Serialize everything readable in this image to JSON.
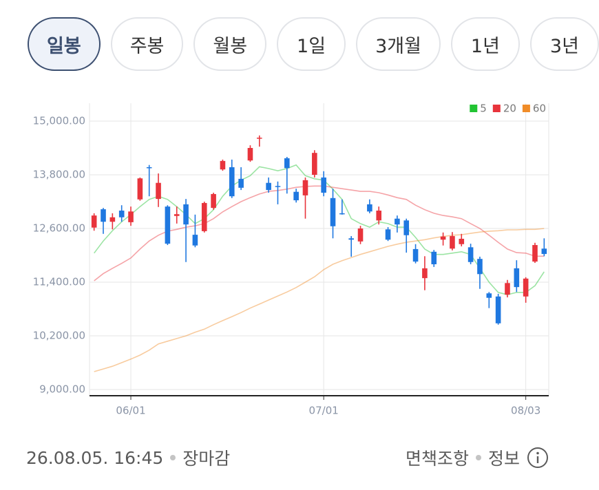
{
  "tabs": [
    "일봉",
    "주봉",
    "월봉",
    "1일",
    "3개월",
    "1년",
    "3년"
  ],
  "selected_tab": 0,
  "chart_data": {
    "type": "candlestick",
    "categories": [
      null,
      null,
      null,
      null,
      "06/01",
      null,
      null,
      null,
      null,
      null,
      null,
      null,
      null,
      null,
      null,
      null,
      null,
      null,
      null,
      null,
      null,
      null,
      null,
      null,
      null,
      "07/01",
      null,
      null,
      null,
      null,
      null,
      null,
      null,
      null,
      null,
      null,
      null,
      null,
      null,
      null,
      null,
      null,
      null,
      null,
      null,
      null,
      null,
      "08/03",
      null,
      null
    ],
    "open": [
      12620,
      13030,
      12750,
      13000,
      12740,
      13250,
      13970,
      13260,
      13090,
      12880,
      13140,
      12460,
      12540,
      13060,
      13920,
      13970,
      13710,
      14120,
      14620,
      13620,
      13550,
      14170,
      13420,
      13340,
      13800,
      13740,
      13280,
      12940,
      12380,
      12310,
      13140,
      12780,
      12580,
      12820,
      12780,
      12140,
      11490,
      12080,
      12350,
      12150,
      12250,
      12180,
      11920,
      11150,
      11080,
      11120,
      11710,
      11080,
      11860,
      12150
    ],
    "high": [
      12940,
      13060,
      12940,
      13120,
      13090,
      13740,
      14020,
      13830,
      13120,
      13090,
      13260,
      12910,
      13200,
      13400,
      14140,
      14140,
      13970,
      14460,
      14680,
      13740,
      13650,
      14200,
      13490,
      13740,
      14350,
      13880,
      13490,
      13250,
      12430,
      12660,
      13250,
      13090,
      12630,
      12890,
      12820,
      12250,
      11980,
      12120,
      12510,
      12520,
      12480,
      12260,
      11970,
      11180,
      11140,
      11450,
      11890,
      11510,
      12280,
      12380
    ],
    "low": [
      12550,
      12480,
      12580,
      12750,
      12660,
      13220,
      13320,
      13080,
      12230,
      12710,
      11850,
      12180,
      12510,
      13020,
      13890,
      13280,
      13460,
      14090,
      14430,
      13400,
      13140,
      13380,
      13180,
      12820,
      13740,
      13320,
      12380,
      12910,
      11970,
      12250,
      12940,
      12690,
      12320,
      12510,
      12060,
      11820,
      11220,
      11740,
      12220,
      12110,
      12200,
      11800,
      11250,
      10820,
      10450,
      11060,
      11180,
      10940,
      11830,
      11980
    ],
    "close": [
      12890,
      12750,
      12850,
      12850,
      12980,
      13720,
      13950,
      13620,
      12260,
      12920,
      12690,
      12220,
      13170,
      13370,
      14110,
      13320,
      13510,
      14400,
      14630,
      13460,
      13540,
      13950,
      13230,
      13680,
      14290,
      13400,
      12650,
      12920,
      12350,
      12600,
      12980,
      13000,
      12350,
      12690,
      12450,
      11860,
      11710,
      11800,
      12420,
      12430,
      12370,
      11850,
      11580,
      11050,
      10480,
      11380,
      11290,
      11480,
      12230,
      12030
    ],
    "up_color": "#e8343c",
    "down_color": "#1f78e0",
    "series": [
      {
        "name": "5",
        "color": "#22c433",
        "values": [
          12050,
          12320,
          12550,
          12750,
          12910,
          13090,
          13250,
          13320,
          13250,
          13090,
          12910,
          12710,
          12820,
          13020,
          13320,
          13550,
          13680,
          13780,
          13980,
          13940,
          13890,
          13940,
          14020,
          13780,
          13710,
          13680,
          13480,
          13250,
          12820,
          12710,
          12630,
          12750,
          12710,
          12630,
          12630,
          12400,
          12140,
          12020,
          12020,
          12050,
          12080,
          12020,
          11710,
          11400,
          11170,
          11120,
          11170,
          11170,
          11320,
          11630
        ]
      },
      {
        "name": "20",
        "color": "#e8343c",
        "values": [
          11430,
          11590,
          11710,
          11820,
          11940,
          12140,
          12320,
          12450,
          12540,
          12580,
          12630,
          12660,
          12710,
          12820,
          12970,
          13090,
          13200,
          13290,
          13370,
          13430,
          13450,
          13480,
          13520,
          13540,
          13550,
          13550,
          13520,
          13490,
          13460,
          13430,
          13430,
          13400,
          13350,
          13290,
          13250,
          13120,
          13020,
          12940,
          12890,
          12860,
          12820,
          12710,
          12600,
          12450,
          12290,
          12140,
          12060,
          12050,
          11980,
          11980
        ]
      },
      {
        "name": "60",
        "color": "#f08c28",
        "values": [
          9400,
          9460,
          9520,
          9600,
          9680,
          9770,
          9880,
          10020,
          10080,
          10140,
          10200,
          10280,
          10350,
          10450,
          10540,
          10630,
          10720,
          10820,
          10910,
          11000,
          11090,
          11180,
          11280,
          11400,
          11520,
          11680,
          11800,
          11880,
          11950,
          12020,
          12080,
          12140,
          12200,
          12250,
          12290,
          12320,
          12350,
          12390,
          12420,
          12450,
          12460,
          12490,
          12520,
          12540,
          12550,
          12570,
          12570,
          12580,
          12580,
          12600
        ]
      }
    ],
    "ylim": [
      9000,
      15000
    ],
    "yticks": [
      {
        "value": 9000,
        "label": "9,000.00"
      },
      {
        "value": 10200,
        "label": "10,200.00"
      },
      {
        "value": 11400,
        "label": "11,400.00"
      },
      {
        "value": 12600,
        "label": "12,600.00"
      },
      {
        "value": 13800,
        "label": "13,800.00"
      },
      {
        "value": 15000,
        "label": "15,000.00"
      }
    ],
    "grid": true,
    "legend": "top-right"
  },
  "footer": {
    "timestamp": "26.08.05. 16:45",
    "status": "장마감",
    "links": [
      "면책조항",
      "정보"
    ]
  }
}
